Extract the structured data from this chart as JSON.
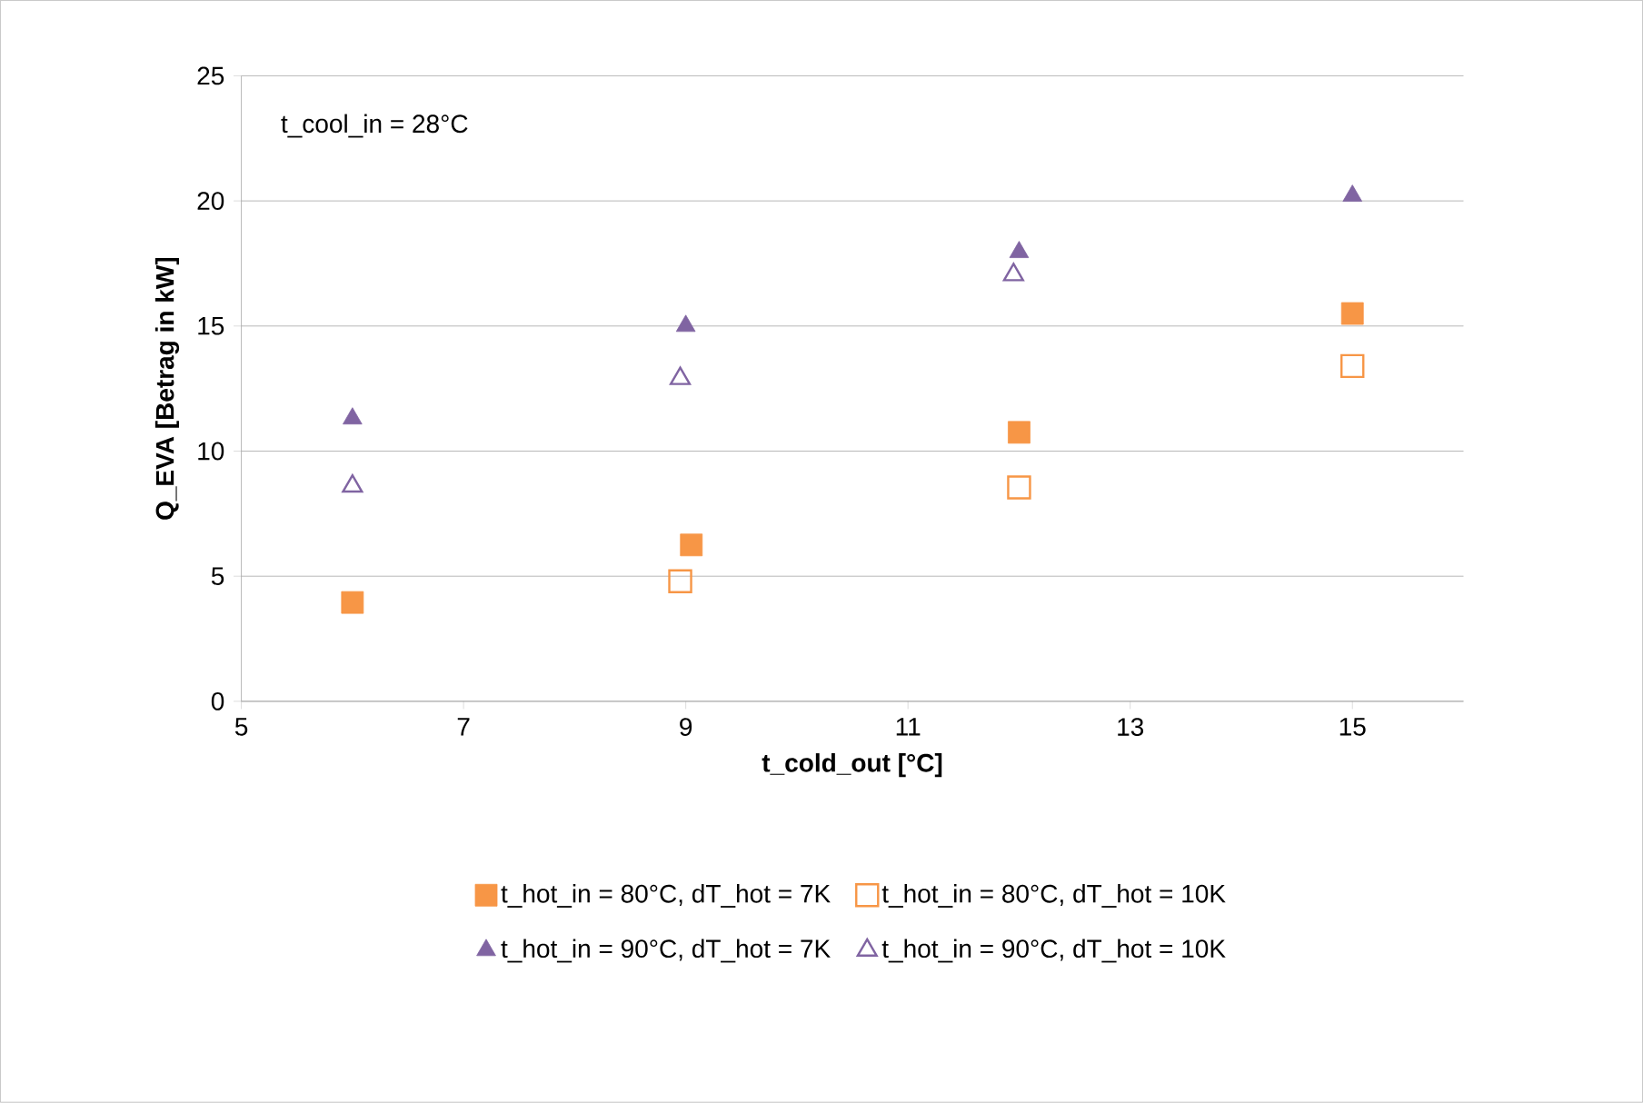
{
  "chart_data": {
    "type": "scatter",
    "xlabel": "t_cold_out [°C]",
    "ylabel": "Q_EVA [Betrag in kW]",
    "annotations": [
      "t_cool_in = 28°C"
    ],
    "xlim": [
      5,
      16
    ],
    "xticks": [
      5,
      7,
      9,
      11,
      13,
      15
    ],
    "ylim": [
      0,
      25
    ],
    "yticks": [
      0,
      5,
      10,
      15,
      20,
      25
    ],
    "grid": "y",
    "legend": "bottom",
    "series": [
      {
        "name": "t_hot_in = 80°C, dT_hot = 7K",
        "color": "#f79646",
        "marker": "square",
        "x": [
          6.0,
          9.05,
          12.0,
          15.0
        ],
        "values": [
          3.95,
          6.25,
          10.75,
          15.5
        ]
      },
      {
        "name": "t_hot_in = 80°C, dT_hot = 10K",
        "color": "#f79646",
        "marker": "square-open",
        "x": [
          8.95,
          12.0,
          15.0
        ],
        "values": [
          4.8,
          8.55,
          13.4
        ]
      },
      {
        "name": "t_hot_in = 90°C, dT_hot = 7K",
        "color": "#8064a2",
        "marker": "triangle",
        "x": [
          6.0,
          9.0,
          12.0,
          15.0
        ],
        "values": [
          11.3,
          15.0,
          17.95,
          20.2
        ]
      },
      {
        "name": "t_hot_in = 90°C, dT_hot = 10K",
        "color": "#8064a2",
        "marker": "triangle-open",
        "x": [
          6.0,
          8.95,
          11.95
        ],
        "values": [
          8.6,
          12.9,
          17.05
        ]
      }
    ]
  }
}
